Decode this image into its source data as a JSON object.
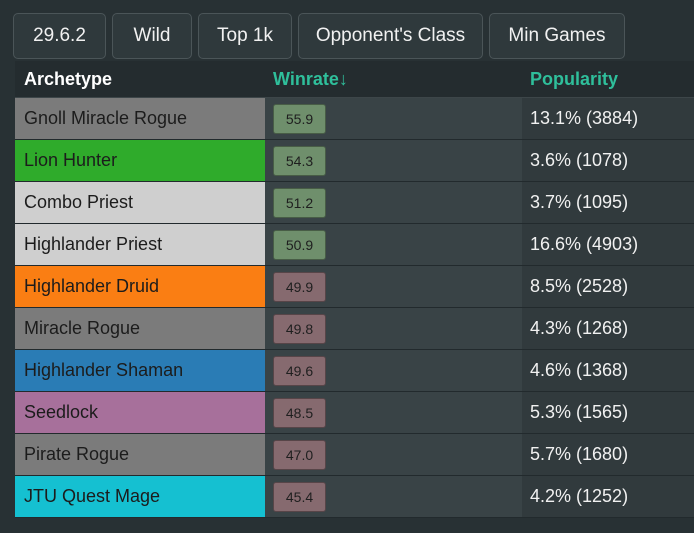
{
  "filters": [
    "29.6.2",
    "Wild",
    "Top 1k",
    "Opponent's Class",
    "Min Games"
  ],
  "table": {
    "headers": {
      "archetype": "Archetype",
      "winrate": "Winrate↓",
      "popularity": "Popularity"
    },
    "colors": {
      "winrate_high": "#6f8f6c",
      "winrate_low": "#866a6f",
      "accent": "#2fbf9b"
    },
    "rows": [
      {
        "archetype": "Gnoll Miracle Rogue",
        "color": "#7b7b7b",
        "winrate": "55.9",
        "popularity": "13.1% (3884)"
      },
      {
        "archetype": "Lion Hunter",
        "color": "#2fab2b",
        "winrate": "54.3",
        "popularity": "3.6% (1078)"
      },
      {
        "archetype": "Combo Priest",
        "color": "#cfcfcf",
        "winrate": "51.2",
        "popularity": "3.7% (1095)"
      },
      {
        "archetype": "Highlander Priest",
        "color": "#cfcfcf",
        "winrate": "50.9",
        "popularity": "16.6% (4903)"
      },
      {
        "archetype": "Highlander Druid",
        "color": "#fa7e13",
        "winrate": "49.9",
        "popularity": "8.5% (2528)"
      },
      {
        "archetype": "Miracle Rogue",
        "color": "#7b7b7b",
        "winrate": "49.8",
        "popularity": "4.3% (1268)"
      },
      {
        "archetype": "Highlander Shaman",
        "color": "#2a7cb5",
        "winrate": "49.6",
        "popularity": "4.6% (1368)"
      },
      {
        "archetype": "Seedlock",
        "color": "#a7709b",
        "winrate": "48.5",
        "popularity": "5.3% (1565)"
      },
      {
        "archetype": "Pirate Rogue",
        "color": "#7b7b7b",
        "winrate": "47.0",
        "popularity": "5.7% (1680)"
      },
      {
        "archetype": "JTU Quest Mage",
        "color": "#15c0d1",
        "winrate": "45.4",
        "popularity": "4.2% (1252)"
      }
    ]
  }
}
